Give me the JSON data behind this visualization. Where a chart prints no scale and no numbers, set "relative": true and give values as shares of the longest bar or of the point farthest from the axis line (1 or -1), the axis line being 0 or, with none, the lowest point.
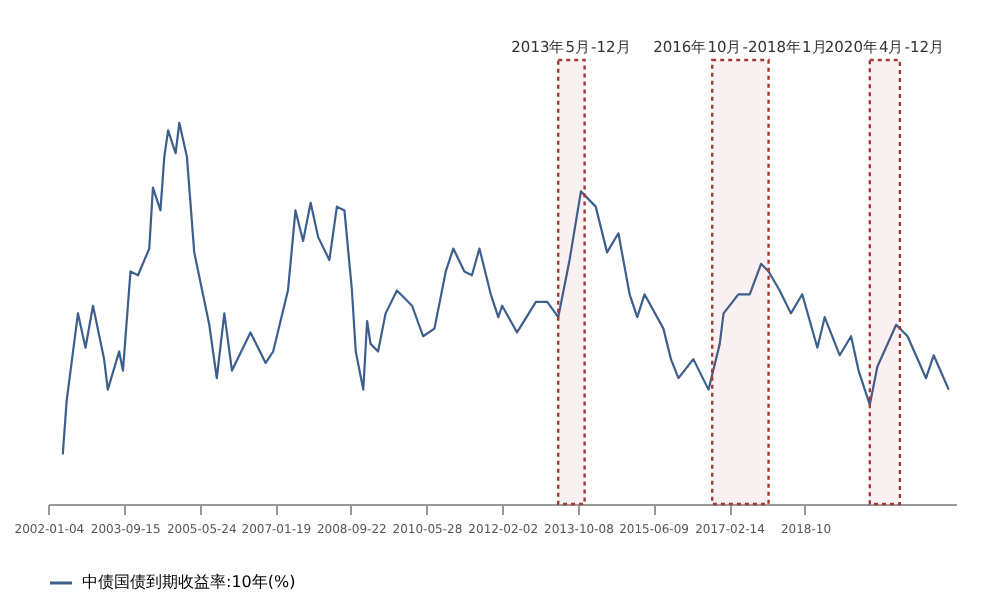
{
  "chart_data": {
    "type": "line",
    "relative": true,
    "x": [
      "2002-05",
      "2002-06",
      "2002-09",
      "2002-11",
      "2003-01",
      "2003-04",
      "2003-05",
      "2003-08",
      "2003-09",
      "2003-11",
      "2004-01",
      "2004-04",
      "2004-05",
      "2004-07",
      "2004-08",
      "2004-09",
      "2004-11",
      "2004-12",
      "2005-02",
      "2005-04",
      "2005-08",
      "2005-10",
      "2005-12",
      "2006-02",
      "2006-07",
      "2006-11",
      "2007-01",
      "2007-05",
      "2007-07",
      "2007-09",
      "2007-11",
      "2008-01",
      "2008-04",
      "2008-06",
      "2008-08",
      "2008-10",
      "2008-11",
      "2009-01",
      "2009-02",
      "2009-03",
      "2009-05",
      "2009-07",
      "2009-10",
      "2010-02",
      "2010-05",
      "2010-08",
      "2010-11",
      "2011-01",
      "2011-04",
      "2011-06",
      "2011-08",
      "2011-11",
      "2012-01",
      "2012-02",
      "2012-06",
      "2012-11",
      "2013-02",
      "2013-05",
      "2013-08",
      "2013-11",
      "2014-03",
      "2014-06",
      "2014-09",
      "2014-12",
      "2015-02",
      "2015-04",
      "2015-09",
      "2015-11",
      "2016-01",
      "2016-05",
      "2016-09",
      "2016-12",
      "2017-01",
      "2017-05",
      "2017-08",
      "2017-11",
      "2018-01",
      "2018-04",
      "2018-07",
      "2018-10",
      "2019-02",
      "2019-04",
      "2019-08",
      "2019-11",
      "2020-01",
      "2020-04",
      "2020-06",
      "2020-11",
      "2021-02",
      "2021-07",
      "2021-09",
      "2022-01"
    ],
    "series": [
      {
        "name": "中债国债到期收益率:10年(%)",
        "color": "#3d5f8c",
        "values": [
          0.13,
          0.27,
          0.5,
          0.41,
          0.52,
          0.38,
          0.3,
          0.4,
          0.35,
          0.61,
          0.6,
          0.67,
          0.83,
          0.77,
          0.91,
          0.98,
          0.92,
          1,
          0.91,
          0.66,
          0.47,
          0.33,
          0.5,
          0.35,
          0.45,
          0.37,
          0.4,
          0.56,
          0.77,
          0.69,
          0.79,
          0.7,
          0.64,
          0.78,
          0.77,
          0.56,
          0.4,
          0.3,
          0.48,
          0.42,
          0.4,
          0.5,
          0.56,
          0.52,
          0.44,
          0.46,
          0.61,
          0.67,
          0.61,
          0.6,
          0.67,
          0.55,
          0.49,
          0.52,
          0.45,
          0.53,
          0.53,
          0.49,
          0.64,
          0.82,
          0.78,
          0.66,
          0.71,
          0.55,
          0.49,
          0.55,
          0.46,
          0.38,
          0.33,
          0.38,
          0.3,
          0.42,
          0.5,
          0.55,
          0.55,
          0.63,
          0.61,
          0.56,
          0.5,
          0.55,
          0.41,
          0.49,
          0.39,
          0.44,
          0.35,
          0.26,
          0.36,
          0.47,
          0.44,
          0.33,
          0.39,
          0.3
        ]
      }
    ],
    "xlim": [
      "2002-01-01",
      "2022-03-01"
    ],
    "xticks": [
      "2002-01-04",
      "2003-09-15",
      "2005-05-24",
      "2007-01-19",
      "2008-09-22",
      "2010-05-28",
      "2012-02-02",
      "2013-10-08",
      "2015-06-09",
      "2017-02-14",
      {
        "value": "2018-10-23",
        "label": "2018-10"
      }
    ],
    "bands": [
      {
        "axis": "x",
        "from": "2013-05",
        "to": "2013-12",
        "label": "2013年5月-12月",
        "color": "#a63a36"
      },
      {
        "axis": "x",
        "from": "2016-10",
        "to": "2018-01",
        "label": "2016年10月-2018年1月",
        "color": "#a63a36"
      },
      {
        "axis": "x",
        "from": "2020-04",
        "to": "2020-12",
        "label": "2020年4月-12月",
        "color": "#a63a36"
      }
    ],
    "legend": "bottom"
  }
}
